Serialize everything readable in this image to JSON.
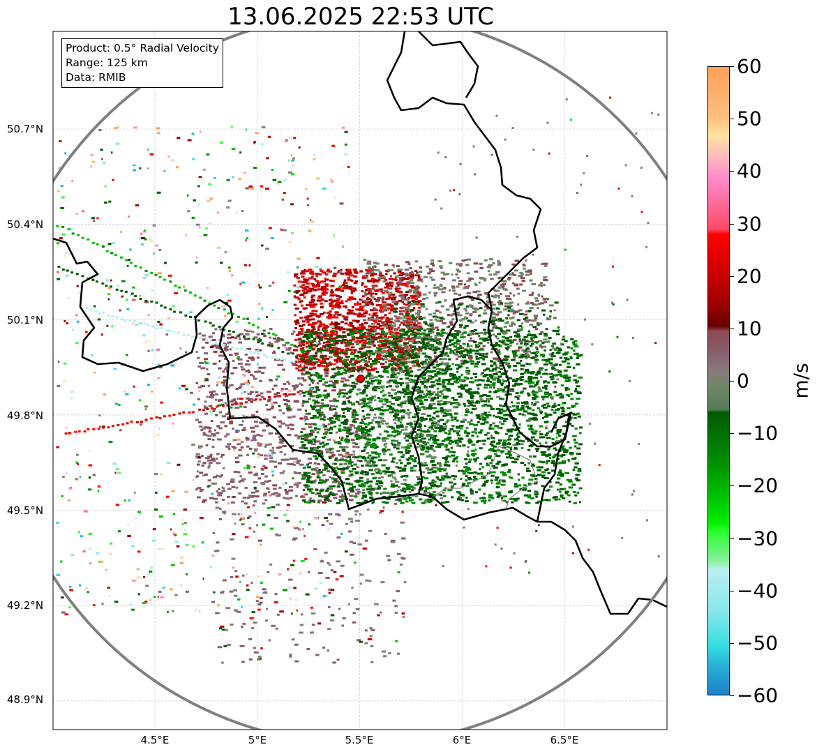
{
  "title": "13.06.2025 22:53 UTC",
  "info_box": {
    "product": "Product: 0.5° Radial Velocity",
    "range": "Range: 125 km",
    "data": "Data: RMIB"
  },
  "x_ticks": [
    "4.5°E",
    "5°E",
    "5.5°E",
    "6°E",
    "6.5°E"
  ],
  "x_tick_values": [
    4.5,
    5.0,
    5.5,
    6.0,
    6.5
  ],
  "y_ticks": [
    "50.7°N",
    "50.4°N",
    "50.1°N",
    "49.8°N",
    "49.5°N",
    "49.2°N",
    "48.9°N"
  ],
  "y_tick_values": [
    50.7,
    50.4,
    50.1,
    49.8,
    49.5,
    49.2,
    48.9
  ],
  "radar_site": {
    "lon": 5.505,
    "lat": 49.914,
    "range_km": 125
  },
  "colorbar": {
    "label": "m/s",
    "ticks": [
      "60",
      "50",
      "40",
      "30",
      "20",
      "10",
      "0",
      "−10",
      "−20",
      "−30",
      "−40",
      "−50",
      "−60"
    ],
    "tick_values": [
      60,
      50,
      40,
      30,
      20,
      10,
      0,
      -10,
      -20,
      -30,
      -40,
      -50,
      -60
    ],
    "vmin": -60,
    "vmax": 60,
    "stops": [
      {
        "v": 60,
        "c": "#ffa05a"
      },
      {
        "v": 50,
        "c": "#ffc07f"
      },
      {
        "v": 47,
        "c": "#ffe49e"
      },
      {
        "v": 45,
        "c": "#ffd0b0"
      },
      {
        "v": 42,
        "c": "#ffb0c0"
      },
      {
        "v": 39,
        "c": "#ff8ccc"
      },
      {
        "v": 34,
        "c": "#ff6a9c"
      },
      {
        "v": 29,
        "c": "#ff4a64"
      },
      {
        "v": 28,
        "c": "#ff0000"
      },
      {
        "v": 20,
        "c": "#c80000"
      },
      {
        "v": 15,
        "c": "#a00000"
      },
      {
        "v": 10.5,
        "c": "#680000"
      },
      {
        "v": 9.5,
        "c": "#8a4a50"
      },
      {
        "v": 5,
        "c": "#886272"
      },
      {
        "v": 2,
        "c": "#887a78"
      },
      {
        "v": -1,
        "c": "#6f8868"
      },
      {
        "v": -5.5,
        "c": "#587a58"
      },
      {
        "v": -6,
        "c": "#005a00"
      },
      {
        "v": -15,
        "c": "#008c00"
      },
      {
        "v": -22,
        "c": "#00c000"
      },
      {
        "v": -27,
        "c": "#00ee00"
      },
      {
        "v": -29,
        "c": "#30ff30"
      },
      {
        "v": -33,
        "c": "#70f080"
      },
      {
        "v": -35,
        "c": "#98f0b0"
      },
      {
        "v": -36,
        "c": "#b8eef0"
      },
      {
        "v": -44,
        "c": "#88e8ec"
      },
      {
        "v": -51,
        "c": "#30dce0"
      },
      {
        "v": -54,
        "c": "#28b4d8"
      },
      {
        "v": -60,
        "c": "#2080c8"
      }
    ]
  }
}
